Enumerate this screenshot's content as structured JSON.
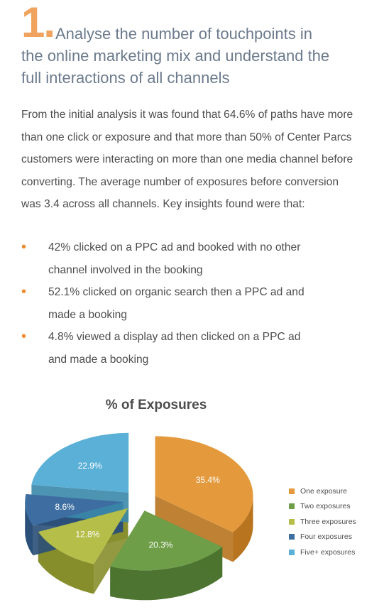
{
  "heading": {
    "number": "1.",
    "line1": "Analyse the number of touchpoints in",
    "line2": "the online marketing mix and understand the",
    "line3": "full interactions of all channels"
  },
  "intro": {
    "lines": [
      "From the initial analysis it was found that 64.6% of paths have more",
      "than one click or exposure and that more than 50% of Center Parcs",
      "customers were interacting on more than one media channel before",
      "converting. The average number of exposures before conversion",
      "was 3.4 across all channels. Key insights found were that:"
    ]
  },
  "bullets": [
    {
      "line1": "42% clicked on a PPC ad and booked with no other",
      "line2": "channel involved in the booking"
    },
    {
      "line1": "52.1% clicked on organic search then a PPC ad and",
      "line2": "made a booking"
    },
    {
      "line1": "4.8% viewed a display ad then clicked on a PPC ad",
      "line2": "and made a booking"
    }
  ],
  "bullet_glyph": "•",
  "chart_data": {
    "type": "pie",
    "title": "% of Exposures",
    "style": "3d-exploded",
    "legend_position": "right",
    "slices": [
      {
        "name": "One exposure",
        "value": 35.4,
        "label": "35.4%",
        "color": "#e49a3c",
        "dark": "#b8741f"
      },
      {
        "name": "Two exposures",
        "value": 20.3,
        "label": "20.3%",
        "color": "#6f9e48",
        "dark": "#4d7430"
      },
      {
        "name": "Three exposures",
        "value": 12.8,
        "label": "12.8%",
        "color": "#b4be48",
        "dark": "#868e2c"
      },
      {
        "name": "Four exposures",
        "value": 8.6,
        "label": "8.6%",
        "color": "#3e6ea1",
        "dark": "#2a4f78"
      },
      {
        "name": "Five+ exposures",
        "value": 22.9,
        "label": "22.9%",
        "color": "#5ab0d6",
        "dark": "#3a88ab"
      }
    ]
  }
}
